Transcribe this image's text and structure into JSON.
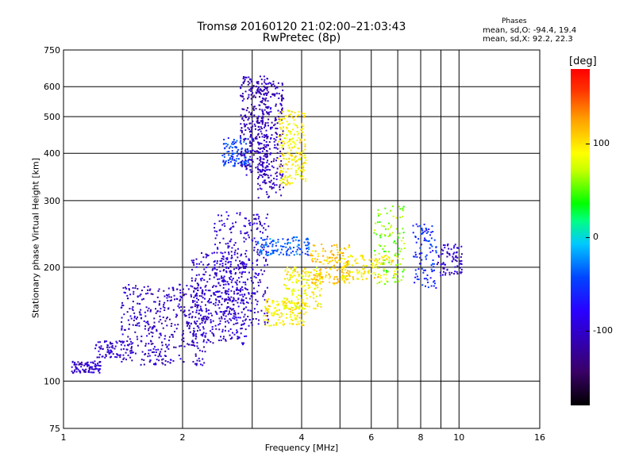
{
  "title": "Tromsø 20160120 21:02:00–21:03:43",
  "subtitle": "RwPretec (8p)",
  "stats": {
    "heading": "Phases",
    "o_line": "mean, sd,O: -94.4, 19.4",
    "x_line": "mean, sd,X:  92.2, 22.3"
  },
  "colorbar": {
    "unit": "[deg]",
    "ticks": [
      {
        "value": 100,
        "label": "100"
      },
      {
        "value": 0,
        "label": "0"
      },
      {
        "value": -100,
        "label": "-100"
      }
    ],
    "range": [
      -180,
      180
    ]
  },
  "chart_data": {
    "type": "scatter",
    "title": "Tromsø 20160120 21:02:00–21:03:43",
    "subtitle": "RwPretec (8p)",
    "xlabel": "Frequency [MHz]",
    "ylabel": "Stationary phase Virtual Height [km]",
    "xscale": "log",
    "yscale": "log",
    "xlim": [
      1,
      16
    ],
    "ylim": [
      75,
      750
    ],
    "grid": true,
    "x_ticks": [
      {
        "value": 1,
        "label": "1"
      },
      {
        "value": 2,
        "label": "2"
      },
      {
        "value": 4,
        "label": "4"
      },
      {
        "value": 6,
        "label": "6"
      },
      {
        "value": 8,
        "label": "8"
      },
      {
        "value": 10,
        "label": "10"
      },
      {
        "value": 16,
        "label": "16"
      }
    ],
    "x_minor_grid": [
      3,
      5,
      7,
      9
    ],
    "y_ticks": [
      {
        "value": 75,
        "label": "75"
      },
      {
        "value": 100,
        "label": "100"
      },
      {
        "value": 200,
        "label": "200"
      },
      {
        "value": 300,
        "label": "300"
      },
      {
        "value": 400,
        "label": "400"
      },
      {
        "value": 500,
        "label": "500"
      },
      {
        "value": 600,
        "label": "600"
      },
      {
        "value": 750,
        "label": "750"
      }
    ],
    "color_by": "phase [deg]",
    "clusters": [
      {
        "f": [
          1.05,
          1.25
        ],
        "h": [
          105,
          113
        ],
        "phase": -100,
        "n": 90
      },
      {
        "f": [
          1.2,
          1.5
        ],
        "h": [
          115,
          128
        ],
        "phase": -100,
        "n": 80
      },
      {
        "f": [
          1.4,
          2.3
        ],
        "h": [
          110,
          180
        ],
        "phase": -105,
        "n": 420
      },
      {
        "f": [
          2.1,
          2.9
        ],
        "h": [
          125,
          220
        ],
        "phase": -100,
        "n": 380
      },
      {
        "f": [
          2.4,
          3.3
        ],
        "h": [
          140,
          280
        ],
        "phase": -100,
        "n": 300
      },
      {
        "f": [
          2.5,
          3.0
        ],
        "h": [
          370,
          440
        ],
        "phase": -50,
        "n": 120
      },
      {
        "f": [
          2.8,
          3.3
        ],
        "h": [
          350,
          640
        ],
        "phase": -110,
        "n": 300
      },
      {
        "f": [
          3.1,
          3.6
        ],
        "h": [
          300,
          620
        ],
        "phase": -105,
        "n": 250
      },
      {
        "f": [
          3.5,
          4.1
        ],
        "h": [
          330,
          520
        ],
        "phase": 95,
        "n": 220
      },
      {
        "f": [
          3.2,
          4.1
        ],
        "h": [
          140,
          165
        ],
        "phase": 95,
        "n": 140
      },
      {
        "f": [
          3.1,
          4.2
        ],
        "h": [
          215,
          240
        ],
        "phase": -40,
        "n": 120
      },
      {
        "f": [
          3.6,
          4.5
        ],
        "h": [
          155,
          200
        ],
        "phase": 90,
        "n": 160
      },
      {
        "f": [
          4.2,
          5.3
        ],
        "h": [
          180,
          230
        ],
        "phase": 110,
        "n": 160
      },
      {
        "f": [
          5.0,
          7.0
        ],
        "h": [
          185,
          215
        ],
        "phase": 95,
        "n": 130
      },
      {
        "f": [
          6.1,
          7.3
        ],
        "h": [
          180,
          290
        ],
        "phase": 60,
        "n": 110
      },
      {
        "f": [
          7.6,
          8.8
        ],
        "h": [
          175,
          260
        ],
        "phase": -60,
        "n": 100
      },
      {
        "f": [
          8.8,
          10.2
        ],
        "h": [
          190,
          230
        ],
        "phase": -100,
        "n": 80
      }
    ]
  }
}
